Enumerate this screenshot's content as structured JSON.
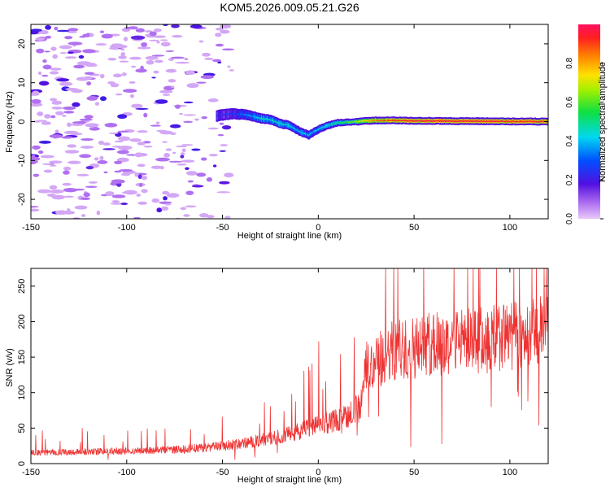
{
  "title": "KOM5.2026.009.05.21.G26",
  "chart_data": [
    {
      "type": "heatmap",
      "name": "spectrogram",
      "xlabel": "Height of straight line (km)",
      "ylabel": "Frequency (Hz)",
      "xlim": [
        -150,
        120
      ],
      "ylim": [
        -25,
        25
      ],
      "xticks": [
        -150,
        -100,
        -50,
        0,
        50,
        100
      ],
      "yticks": [
        -20,
        -10,
        0,
        10,
        20
      ],
      "colorbar": {
        "label": "Normalized spectral amplitude",
        "range": [
          0,
          1
        ],
        "ticks": [
          "0.0",
          "0.2",
          "0.4",
          "0.6",
          "0.8"
        ]
      },
      "ridge": {
        "description_points": [
          [
            -53,
            1.5
          ],
          [
            -45,
            2
          ],
          [
            -38,
            1.8
          ],
          [
            -30,
            0.8
          ],
          [
            -25,
            0.5
          ],
          [
            -20,
            -0.5
          ],
          [
            -15,
            -1
          ],
          [
            -10,
            -2.5
          ],
          [
            -5,
            -3.5
          ],
          [
            0,
            -2
          ],
          [
            5,
            -1
          ],
          [
            10,
            -0.3
          ],
          [
            20,
            0
          ],
          [
            30,
            0.3
          ],
          [
            40,
            0.3
          ],
          [
            50,
            0.2
          ],
          [
            80,
            0.1
          ],
          [
            120,
            0
          ]
        ],
        "amplitude_points": [
          [
            -53,
            0.2
          ],
          [
            -40,
            0.3
          ],
          [
            -30,
            0.45
          ],
          [
            -20,
            0.45
          ],
          [
            -10,
            0.4
          ],
          [
            0,
            0.4
          ],
          [
            10,
            0.5
          ],
          [
            20,
            0.65
          ],
          [
            30,
            0.85
          ],
          [
            50,
            0.95
          ],
          [
            80,
            0.95
          ],
          [
            120,
            0.92
          ]
        ]
      },
      "noise_region_xmax": -50
    },
    {
      "type": "line",
      "name": "snr",
      "xlabel": "Height of straight line (km)",
      "ylabel": "SNR (v/v)",
      "xlim": [
        -150,
        120
      ],
      "ylim": [
        0,
        275
      ],
      "xticks": [
        -150,
        -100,
        -50,
        0,
        50,
        100
      ],
      "yticks": [
        0,
        50,
        100,
        150,
        200,
        250
      ],
      "color": "#ee3333",
      "trend_points": [
        [
          -150,
          15
        ],
        [
          -120,
          17
        ],
        [
          -90,
          18
        ],
        [
          -60,
          22
        ],
        [
          -40,
          28
        ],
        [
          -20,
          38
        ],
        [
          -5,
          50
        ],
        [
          10,
          62
        ],
        [
          22,
          80
        ],
        [
          25,
          135
        ],
        [
          40,
          160
        ],
        [
          60,
          168
        ],
        [
          80,
          172
        ],
        [
          100,
          180
        ],
        [
          120,
          190
        ]
      ]
    }
  ]
}
